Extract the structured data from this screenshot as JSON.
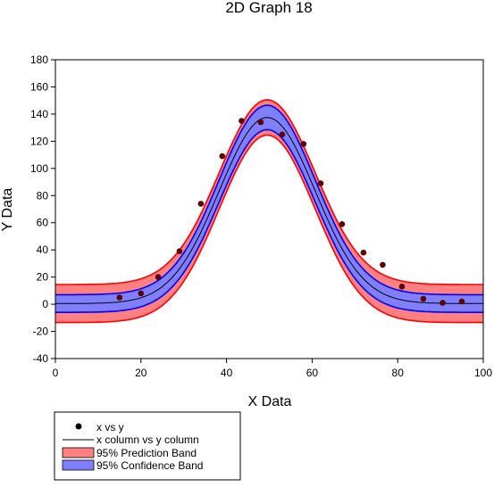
{
  "chart_data": {
    "type": "scatter",
    "title": "2D Graph 18",
    "xlabel": "X Data",
    "ylabel": "Y Data",
    "xlim": [
      0,
      100
    ],
    "ylim": [
      -40,
      180
    ],
    "x_ticks": [
      0,
      20,
      40,
      60,
      80,
      100
    ],
    "y_ticks": [
      -40,
      -20,
      0,
      20,
      40,
      60,
      80,
      100,
      120,
      140,
      160,
      180
    ],
    "grid": false,
    "legend_position": "bottom-left",
    "colors": {
      "points": "#5a0000",
      "fit_line": "#000000",
      "prediction_fill": "#ff8080",
      "prediction_edge": "#ff0000",
      "confidence_fill": "#8080ff",
      "confidence_edge": "#0000ff"
    },
    "series": [
      {
        "name": "x vs y",
        "kind": "points",
        "points": [
          [
            15,
            5
          ],
          [
            20,
            8
          ],
          [
            24,
            20
          ],
          [
            29,
            39
          ],
          [
            34,
            74
          ],
          [
            39,
            109
          ],
          [
            43.5,
            135
          ],
          [
            48,
            134
          ],
          [
            53,
            125
          ],
          [
            58,
            118
          ],
          [
            62,
            89
          ],
          [
            67,
            59
          ],
          [
            72,
            38
          ],
          [
            76.5,
            29
          ],
          [
            81,
            13
          ],
          [
            86,
            4
          ],
          [
            90.5,
            1
          ],
          [
            95,
            2
          ]
        ]
      },
      {
        "name": "x column vs y column",
        "kind": "line",
        "model": {
          "baseline": 0.5,
          "amplitude": 137,
          "center": 49.5,
          "sigma": 11.2
        }
      },
      {
        "name": "95% Prediction Band",
        "kind": "band",
        "half_width_tail": 14,
        "half_width_peak": 13
      },
      {
        "name": "95% Confidence Band",
        "kind": "band",
        "half_width_tail": 6.5,
        "half_width_peak": 9
      }
    ]
  }
}
